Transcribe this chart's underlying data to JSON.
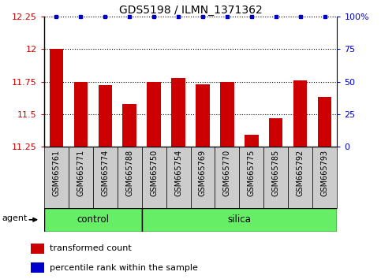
{
  "title": "GDS5198 / ILMN_1371362",
  "samples": [
    "GSM665761",
    "GSM665771",
    "GSM665774",
    "GSM665788",
    "GSM665750",
    "GSM665754",
    "GSM665769",
    "GSM665770",
    "GSM665775",
    "GSM665785",
    "GSM665792",
    "GSM665793"
  ],
  "bar_values": [
    12.0,
    11.75,
    11.72,
    11.58,
    11.75,
    11.78,
    11.73,
    11.75,
    11.34,
    11.47,
    11.76,
    11.63
  ],
  "percentile_values": [
    100,
    100,
    100,
    100,
    100,
    100,
    100,
    100,
    100,
    100,
    100,
    100
  ],
  "ylim_left": [
    11.25,
    12.25
  ],
  "ylim_right": [
    0,
    100
  ],
  "yticks_left": [
    11.25,
    11.5,
    11.75,
    12.0,
    12.25
  ],
  "yticks_right": [
    0,
    25,
    50,
    75,
    100
  ],
  "ytick_labels_left": [
    "11.25",
    "11.5",
    "11.75",
    "12",
    "12.25"
  ],
  "ytick_labels_right": [
    "0",
    "25",
    "50",
    "75",
    "100%"
  ],
  "bar_color": "#cc0000",
  "percentile_color": "#0000cc",
  "bar_width": 0.55,
  "control_samples": 4,
  "total_samples": 12,
  "control_label": "control",
  "silica_label": "silica",
  "agent_label": "agent",
  "legend_bar_label": "transformed count",
  "legend_dot_label": "percentile rank within the sample",
  "control_color": "#66ee66",
  "silica_color": "#66ee66",
  "tick_bg_color": "#cccccc",
  "dotted_color": "black"
}
